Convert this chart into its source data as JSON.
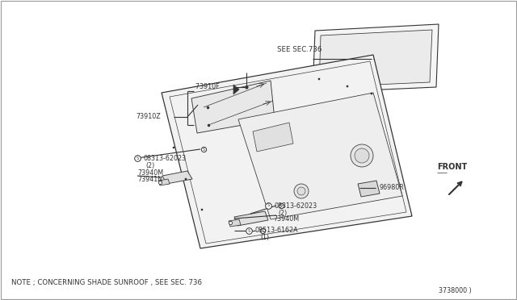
{
  "background_color": "#ffffff",
  "line_color": "#333333",
  "note_text": "NOTE ; CONCERNING SHADE SUNROOF , SEE SEC. 736",
  "diagram_number": "3738000 )",
  "labels": {
    "see_sec": "SEE SEC.736",
    "part_73910f": "-73910F",
    "part_73910z": "73910Z",
    "screw_08313_1": "08313-62023",
    "qty_2_1": "(2)",
    "part_73940m_1": "73940M",
    "part_73941n": "73941N",
    "screw_08313_2": "08313-62023",
    "qty_2_2": "(2)",
    "part_73940m_2": "73940M",
    "screw_08513": "08513-6162A",
    "qty_1": "(1)",
    "part_96980r": "96980R",
    "front": "FRONT"
  }
}
